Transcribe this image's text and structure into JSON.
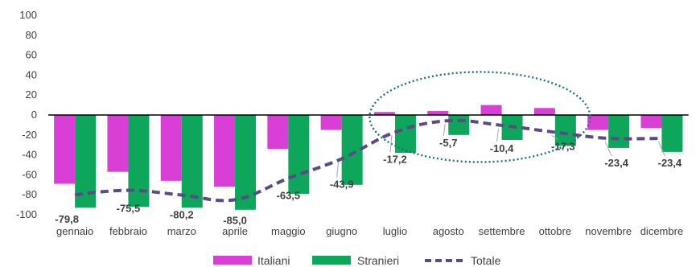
{
  "chart_data": {
    "type": "bar",
    "categories": [
      "gennaio",
      "febbraio",
      "marzo",
      "aprile",
      "maggio",
      "giugno",
      "luglio",
      "agosto",
      "settembre",
      "ottobre",
      "novembre",
      "dicembre"
    ],
    "series": [
      {
        "name": "Italiani",
        "type": "bar",
        "color": "#d93fd4",
        "values": [
          -69,
          -57,
          -66,
          -72,
          -34,
          -15,
          3,
          4,
          10,
          7,
          -15,
          -13
        ]
      },
      {
        "name": "Stranieri",
        "type": "bar",
        "color": "#0ea65a",
        "values": [
          -93,
          -92,
          -93,
          -95,
          -79,
          -70,
          -38,
          -20,
          -25,
          -31,
          -33,
          -37
        ]
      },
      {
        "name": "Totale",
        "type": "line",
        "style": "dashed",
        "color": "#5b4a86",
        "values": [
          -79.8,
          -75.5,
          -80.2,
          -85.0,
          -63.5,
          -43.9,
          -17.2,
          -5.7,
          -10.4,
          -17.3,
          -23.4,
          -23.4
        ],
        "labels": [
          "-79,8",
          "-75,5",
          "-80,2",
          "-85,0",
          "-63,5",
          "-43,9",
          "-17,2",
          "-5,7",
          "-10,4",
          "-17,3",
          "-23,4",
          "-23,4"
        ]
      }
    ],
    "ylim": [
      -100,
      100
    ],
    "yticks": [
      "100",
      "80",
      "60",
      "40",
      "20",
      "0",
      "-20",
      "-40",
      "-60",
      "-80",
      "-100"
    ],
    "legend_position": "bottom",
    "annotation": "dotted ellipse highlighting luglio–ottobre",
    "grid": false
  }
}
